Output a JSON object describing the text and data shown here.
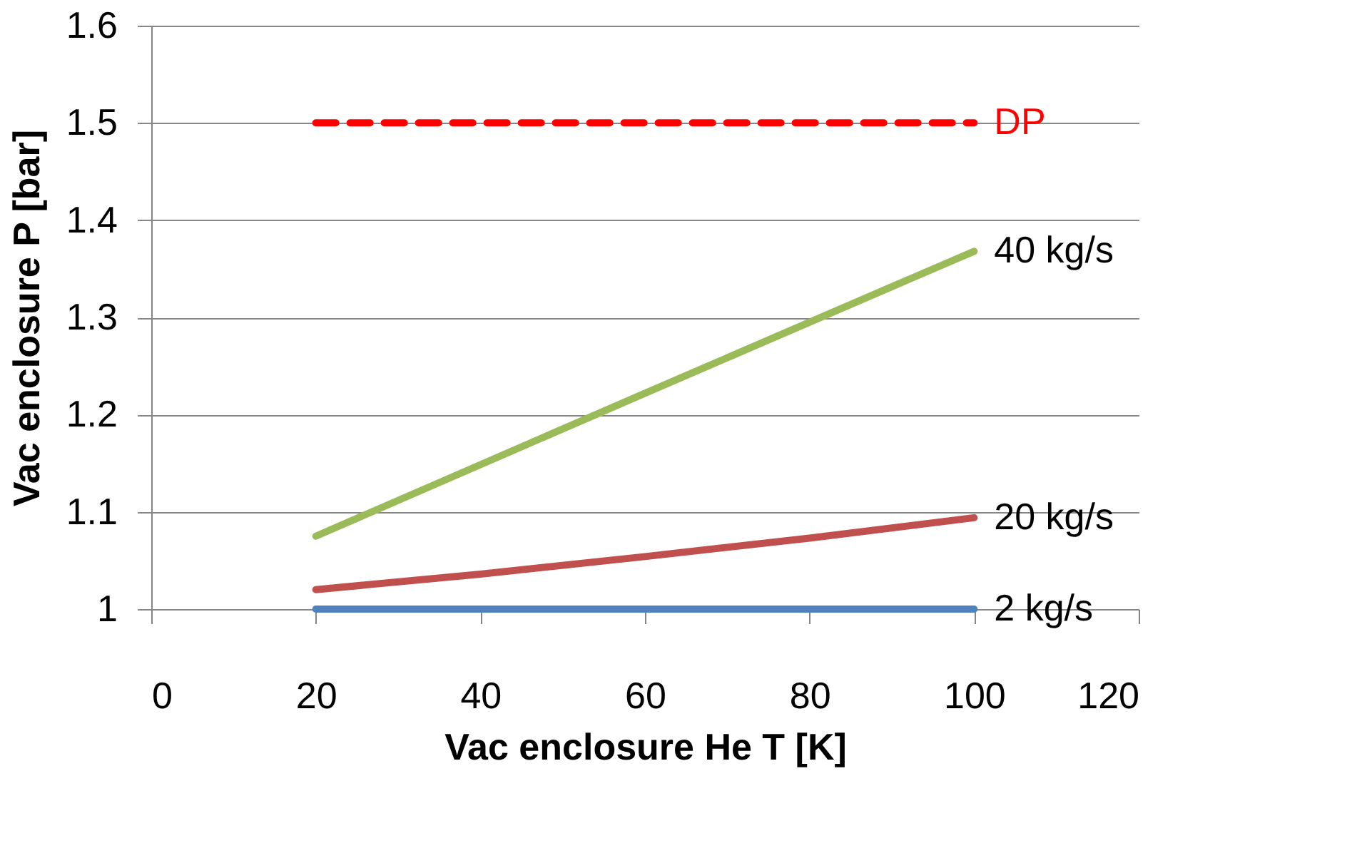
{
  "chart_data": {
    "type": "line",
    "xlabel": "Vac enclosure He T [K]",
    "ylabel": "Vac enclosure P [bar]",
    "xlim": [
      0,
      120
    ],
    "xticks": [
      0,
      20,
      40,
      60,
      80,
      100,
      120
    ],
    "ylim": [
      1,
      1.6
    ],
    "yticks": [
      1,
      1.1,
      1.2,
      1.3,
      1.4,
      1.5,
      1.6
    ],
    "grid": "y",
    "marker": "none",
    "series": [
      {
        "name": "DP",
        "color": "#ff0000",
        "line_style": "dashed",
        "x": [
          20,
          100
        ],
        "values": [
          1.5,
          1.5
        ]
      },
      {
        "name": "40 kg/s",
        "color": "#9bbb59",
        "line_style": "solid",
        "x": [
          20,
          60,
          100
        ],
        "values": [
          1.075,
          1.222,
          1.368
        ]
      },
      {
        "name": "20 kg/s",
        "color": "#c0504d",
        "line_style": "solid",
        "x": [
          20,
          40,
          60,
          80,
          100
        ],
        "values": [
          1.02,
          1.036,
          1.054,
          1.073,
          1.094
        ]
      },
      {
        "name": "2 kg/s",
        "color": "#4f81bd",
        "line_style": "solid",
        "x": [
          20,
          100
        ],
        "values": [
          1.0,
          1.0
        ]
      }
    ]
  }
}
